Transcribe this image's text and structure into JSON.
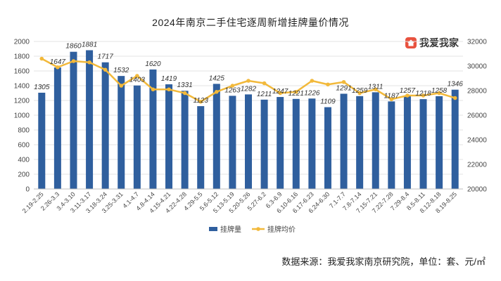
{
  "chart_data": {
    "type": "bar+line",
    "title": "2024年南京二手住宅逐周新增挂牌量价情况",
    "categories": [
      "2.19-2.25",
      "2.26-3.3",
      "3.4-3.10",
      "3.11-3.17",
      "3.18-3.24",
      "3.25-3.31",
      "4.1-4.7",
      "4.8-4.14",
      "4.15-4.21",
      "4.22-4.28",
      "4.29-5.5",
      "5.6-5.12",
      "5.13-5.19",
      "5.20-5.26",
      "5.27-6.2",
      "6.3-6.9",
      "6.10-6.16",
      "6.17-6.23",
      "6.24-6.30",
      "7.1-7.7",
      "7.8-7.14",
      "7.15-7.21",
      "7.22-7.28",
      "7.29-8.4",
      "8.5-8.11",
      "8.12-8.18",
      "8.19-8.25"
    ],
    "series": [
      {
        "name": "挂牌量",
        "type": "bar",
        "axis": "left",
        "color": "#2f5f9e",
        "values": [
          1305,
          1647,
          1860,
          1881,
          1717,
          1532,
          1403,
          1620,
          1419,
          1331,
          1123,
          1425,
          1263,
          1282,
          1211,
          1247,
          1221,
          1226,
          1109,
          1291,
          1259,
          1311,
          1187,
          1257,
          1218,
          1258,
          1346
        ]
      },
      {
        "name": "挂牌均价",
        "type": "line",
        "axis": "right",
        "color": "#f2b93b",
        "values": [
          30600,
          29900,
          30400,
          30300,
          29700,
          28400,
          29200,
          28100,
          28100,
          27800,
          27100,
          27900,
          28400,
          28800,
          28600,
          27800,
          27900,
          28800,
          28500,
          28700,
          27800,
          28100,
          27300,
          27600,
          27600,
          27800,
          27400
        ]
      }
    ],
    "y_left": {
      "min": 0,
      "max": 2000,
      "step": 200,
      "ticks": [
        "0",
        "200",
        "400",
        "600",
        "800",
        "1000",
        "1200",
        "1400",
        "1600",
        "1800",
        "2000"
      ]
    },
    "y_right": {
      "min": 20000,
      "max": 32000,
      "step": 2000,
      "ticks": [
        "20000",
        "22000",
        "24000",
        "26000",
        "28000",
        "30000",
        "32000"
      ]
    },
    "grid": "horizontal",
    "legend": "bottom-center"
  },
  "logo_text": "我爱我家",
  "source_text": "数据来源：我爱我家南京研究院，单位：套、元/㎡"
}
